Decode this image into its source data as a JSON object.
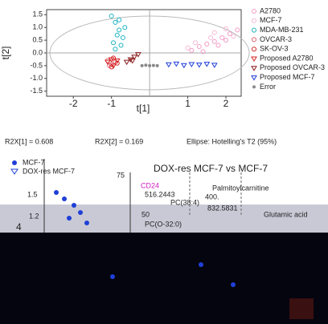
{
  "chart_data": {
    "type": "scatter",
    "x_label": "t[1]",
    "y_label": "t[2]",
    "xlim": [
      -2.7,
      2.4
    ],
    "ylim": [
      -1.7,
      1.7
    ],
    "xticks": [
      -2,
      -1,
      1,
      2
    ],
    "yticks": [
      {
        "value": 1.5,
        "label": "1.5"
      },
      {
        "value": 1,
        "label": "1.0"
      },
      {
        "value": 0.5,
        "label": "0.5"
      },
      {
        "value": 0,
        "label": "0.0"
      },
      {
        "value": -0.5,
        "label": "-0.5"
      },
      {
        "value": -1,
        "label": "-1.0"
      },
      {
        "value": -1.5,
        "label": "-1.5"
      }
    ],
    "series": [
      {
        "name": "A2780",
        "color": "#f29ac4",
        "marker": "circle",
        "x": [
          1.1,
          1.3,
          1.5,
          1.7,
          1.9,
          2.1,
          2.3,
          1.4,
          1.8,
          2.0
        ],
        "y": [
          0.1,
          0.25,
          0.35,
          0.45,
          0.6,
          0.75,
          0.9,
          0.05,
          0.3,
          0.5
        ]
      },
      {
        "name": "MCF-7",
        "color": "#f6b8d4",
        "marker": "circle",
        "x": [
          1.2,
          1.6,
          2.0,
          2.2,
          1.0,
          1.7
        ],
        "y": [
          0.4,
          0.6,
          0.95,
          0.65,
          0.2,
          0.8
        ]
      },
      {
        "name": "MDA-MB-231",
        "color": "#1ab3c2",
        "marker": "circle",
        "x": [
          -1.0,
          -0.9,
          -0.8,
          -0.7,
          -0.95,
          -0.75,
          -0.85,
          -0.65,
          -0.9,
          -0.8
        ],
        "y": [
          1.45,
          1.2,
          0.9,
          0.6,
          0.4,
          0.3,
          0.7,
          1.0,
          0.15,
          1.3
        ]
      },
      {
        "name": "OVCAR-3",
        "color": "#e06070",
        "marker": "circle",
        "x": [
          -1.1,
          -1.0,
          -0.9,
          -1.05
        ],
        "y": [
          -0.3,
          -0.45,
          -0.35,
          -0.5
        ]
      },
      {
        "name": "SK-OV-3",
        "color": "#d42020",
        "marker": "circle",
        "x": [
          -0.95,
          -0.85,
          -1.0
        ],
        "y": [
          -0.2,
          -0.4,
          -0.55
        ]
      },
      {
        "name": "Proposed A2780",
        "color": "#d42020",
        "marker": "triangle",
        "x": [
          -1.1,
          -0.95,
          -0.85,
          -1.0
        ],
        "y": [
          -0.35,
          -0.5,
          -0.3,
          -0.25
        ]
      },
      {
        "name": "Proposed OVCAR-3",
        "color": "#8b1a1a",
        "marker": "triangle",
        "x": [
          -0.6,
          -0.5,
          -0.4,
          -0.3,
          -0.45
        ],
        "y": [
          -0.35,
          -0.25,
          -0.15,
          -0.05,
          -0.3
        ]
      },
      {
        "name": "Proposed MCF-7",
        "color": "#1f3fd6",
        "marker": "triangle",
        "x": [
          0.5,
          0.7,
          0.9,
          1.1,
          1.3,
          1.5,
          1.7
        ],
        "y": [
          -0.45,
          -0.42,
          -0.48,
          -0.44,
          -0.46,
          -0.43,
          -0.47
        ]
      },
      {
        "name": "Error",
        "color": "#888888",
        "marker": "dot",
        "x": [
          -0.2,
          -0.1,
          0.0,
          0.1,
          0.2
        ],
        "y": [
          -0.5,
          -0.48,
          -0.5,
          -0.49,
          -0.5
        ]
      }
    ]
  },
  "stats": {
    "r2x1": "R2X[1] = 0.608",
    "r2x2": "R2X[2] = 0.169",
    "ellipse": "Ellipse: Hotelling's T2 (95%)"
  },
  "lower_left": {
    "legend": [
      "MCF-7",
      "DOX-res MCF-7"
    ],
    "ticks": [
      "1.5",
      "1.2"
    ],
    "axis": "4"
  },
  "lower_right": {
    "title": "DOX-res MCF-7 vs MCF-7",
    "ticks": [
      "75",
      "50"
    ],
    "labels": [
      "CD24",
      "516.2443",
      "PC(38:4)",
      "Palmitoylcarnitine",
      "400.",
      "832.5831",
      "PC(O-32:0)",
      "Glutamic acid"
    ]
  }
}
